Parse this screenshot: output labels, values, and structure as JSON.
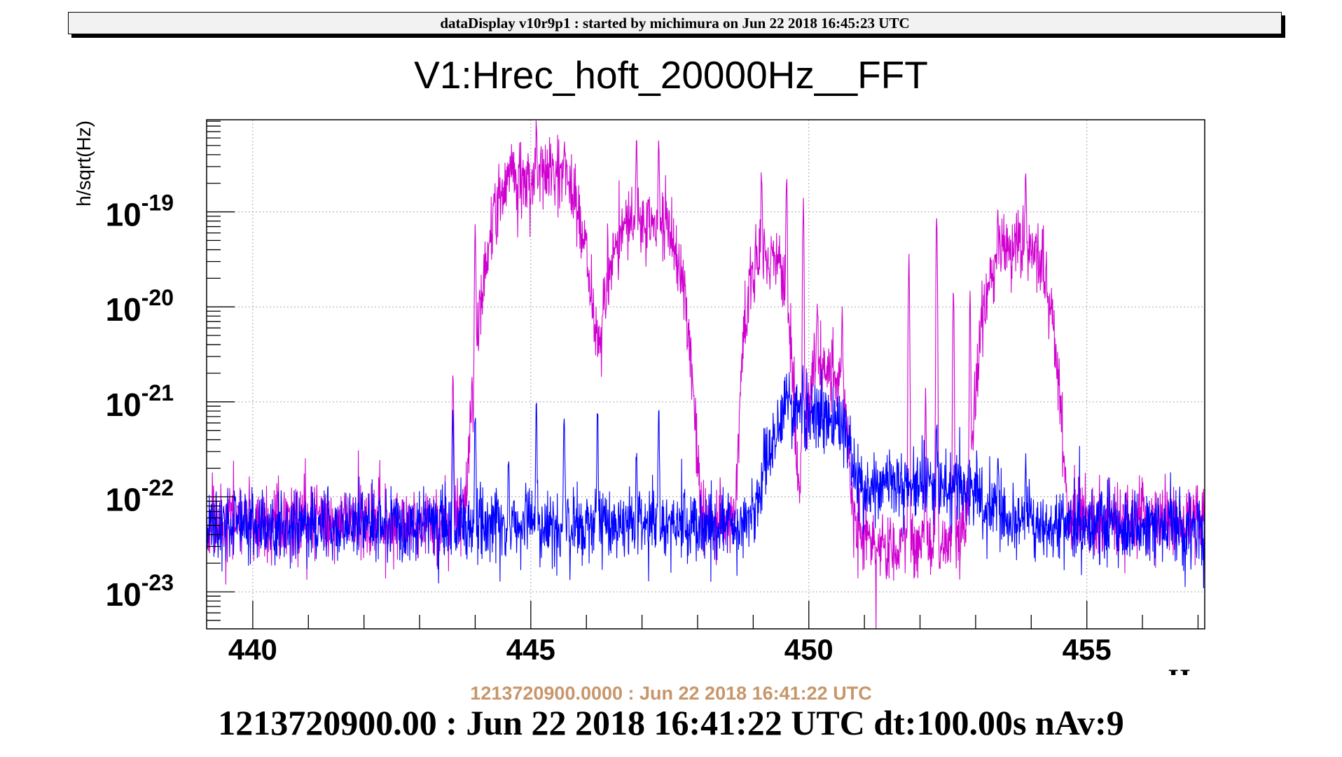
{
  "header": {
    "banner": "dataDisplay v10r9p1 : started by michimura on Jun 22 2018 16:45:23 UTC"
  },
  "footer": {
    "gps_time": "1213720900.0000 : Jun 22 2018 16:41:22 UTC",
    "summary": "1213720900.00 : Jun 22 2018 16:41:22 UTC dt:100.00s nAv:9"
  },
  "chart_data": {
    "type": "line",
    "title": "V1:Hrec_hoft_20000Hz__FFT",
    "xlabel": "Hz",
    "ylabel": "h/sqrt(Hz)",
    "xscale": "linear",
    "yscale": "log",
    "xlim": [
      439.17,
      457.12
    ],
    "ylim_log10": [
      -23.39,
      -18.03
    ],
    "grid": true,
    "x_ticks": [
      440,
      445,
      450,
      455
    ],
    "x_tick_labels": [
      "440",
      "445",
      "450",
      "455"
    ],
    "y_ticks_log10": [
      -23,
      -22,
      -21,
      -20,
      -19
    ],
    "y_tick_labels": [
      {
        "base": "10",
        "exp": "-23"
      },
      {
        "base": "10",
        "exp": "-22"
      },
      {
        "base": "10",
        "exp": "-21"
      },
      {
        "base": "10",
        "exp": "-20"
      },
      {
        "base": "10",
        "exp": "-19"
      }
    ],
    "series": [
      {
        "name": "magenta trace",
        "color": "#d000d0",
        "noise_floor": 5.5e-23,
        "broad_features": [
          {
            "center": 445.1,
            "width": 0.75,
            "amplitude": 2.5e-19
          },
          {
            "center": 447.05,
            "width": 0.6,
            "amplitude": 8e-20
          },
          {
            "center": 449.25,
            "width": 0.35,
            "amplitude": 3.5e-20
          },
          {
            "center": 450.3,
            "width": 0.35,
            "amplitude": 2e-21
          },
          {
            "center": 453.75,
            "width": 0.55,
            "amplitude": 4e-20
          },
          {
            "center": 451.9,
            "width": 1.1,
            "amplitude": -2.5e-23
          }
        ],
        "lines": [
          {
            "freq": 443.6,
            "amp": 3e-21
          },
          {
            "freq": 444.0,
            "amp": 1e-19
          },
          {
            "freq": 444.6,
            "amp": 1e-19
          },
          {
            "freq": 445.1,
            "amp": 7e-19
          },
          {
            "freq": 445.6,
            "amp": 4.5e-19
          },
          {
            "freq": 446.9,
            "amp": 6e-19
          },
          {
            "freq": 447.3,
            "amp": 6e-19
          },
          {
            "freq": 449.15,
            "amp": 2.8e-19
          },
          {
            "freq": 449.6,
            "amp": 2.8e-19
          },
          {
            "freq": 449.9,
            "amp": 1.5e-19
          },
          {
            "freq": 450.15,
            "amp": 1.2e-20
          },
          {
            "freq": 450.6,
            "amp": 1e-20
          },
          {
            "freq": 451.8,
            "amp": 4e-20
          },
          {
            "freq": 452.1,
            "amp": 1.5e-21
          },
          {
            "freq": 452.3,
            "amp": 1e-19
          },
          {
            "freq": 452.6,
            "amp": 1.8e-20
          },
          {
            "freq": 452.9,
            "amp": 1.5e-20
          },
          {
            "freq": 453.4,
            "amp": 1e-19
          },
          {
            "freq": 453.9,
            "amp": 3e-19
          }
        ]
      },
      {
        "name": "blue trace",
        "color": "#0000ff",
        "noise_floor": 5e-23,
        "broad_features": [
          {
            "center": 450.0,
            "width": 0.7,
            "amplitude": 7e-22
          },
          {
            "center": 452.0,
            "width": 1.3,
            "amplitude": 8e-23
          }
        ],
        "lines": [
          {
            "freq": 443.6,
            "amp": 1e-21
          },
          {
            "freq": 444.0,
            "amp": 1e-21
          },
          {
            "freq": 444.6,
            "amp": 3e-22
          },
          {
            "freq": 445.1,
            "amp": 1e-21
          },
          {
            "freq": 445.6,
            "amp": 9e-22
          },
          {
            "freq": 446.2,
            "amp": 1e-21
          },
          {
            "freq": 446.9,
            "amp": 3e-22
          },
          {
            "freq": 447.3,
            "amp": 1e-21
          },
          {
            "freq": 449.6,
            "amp": 1.5e-21
          },
          {
            "freq": 452.3,
            "amp": 5e-22
          },
          {
            "freq": 453.4,
            "amp": 3e-22
          },
          {
            "freq": 453.9,
            "amp": 3e-22
          }
        ]
      }
    ]
  }
}
